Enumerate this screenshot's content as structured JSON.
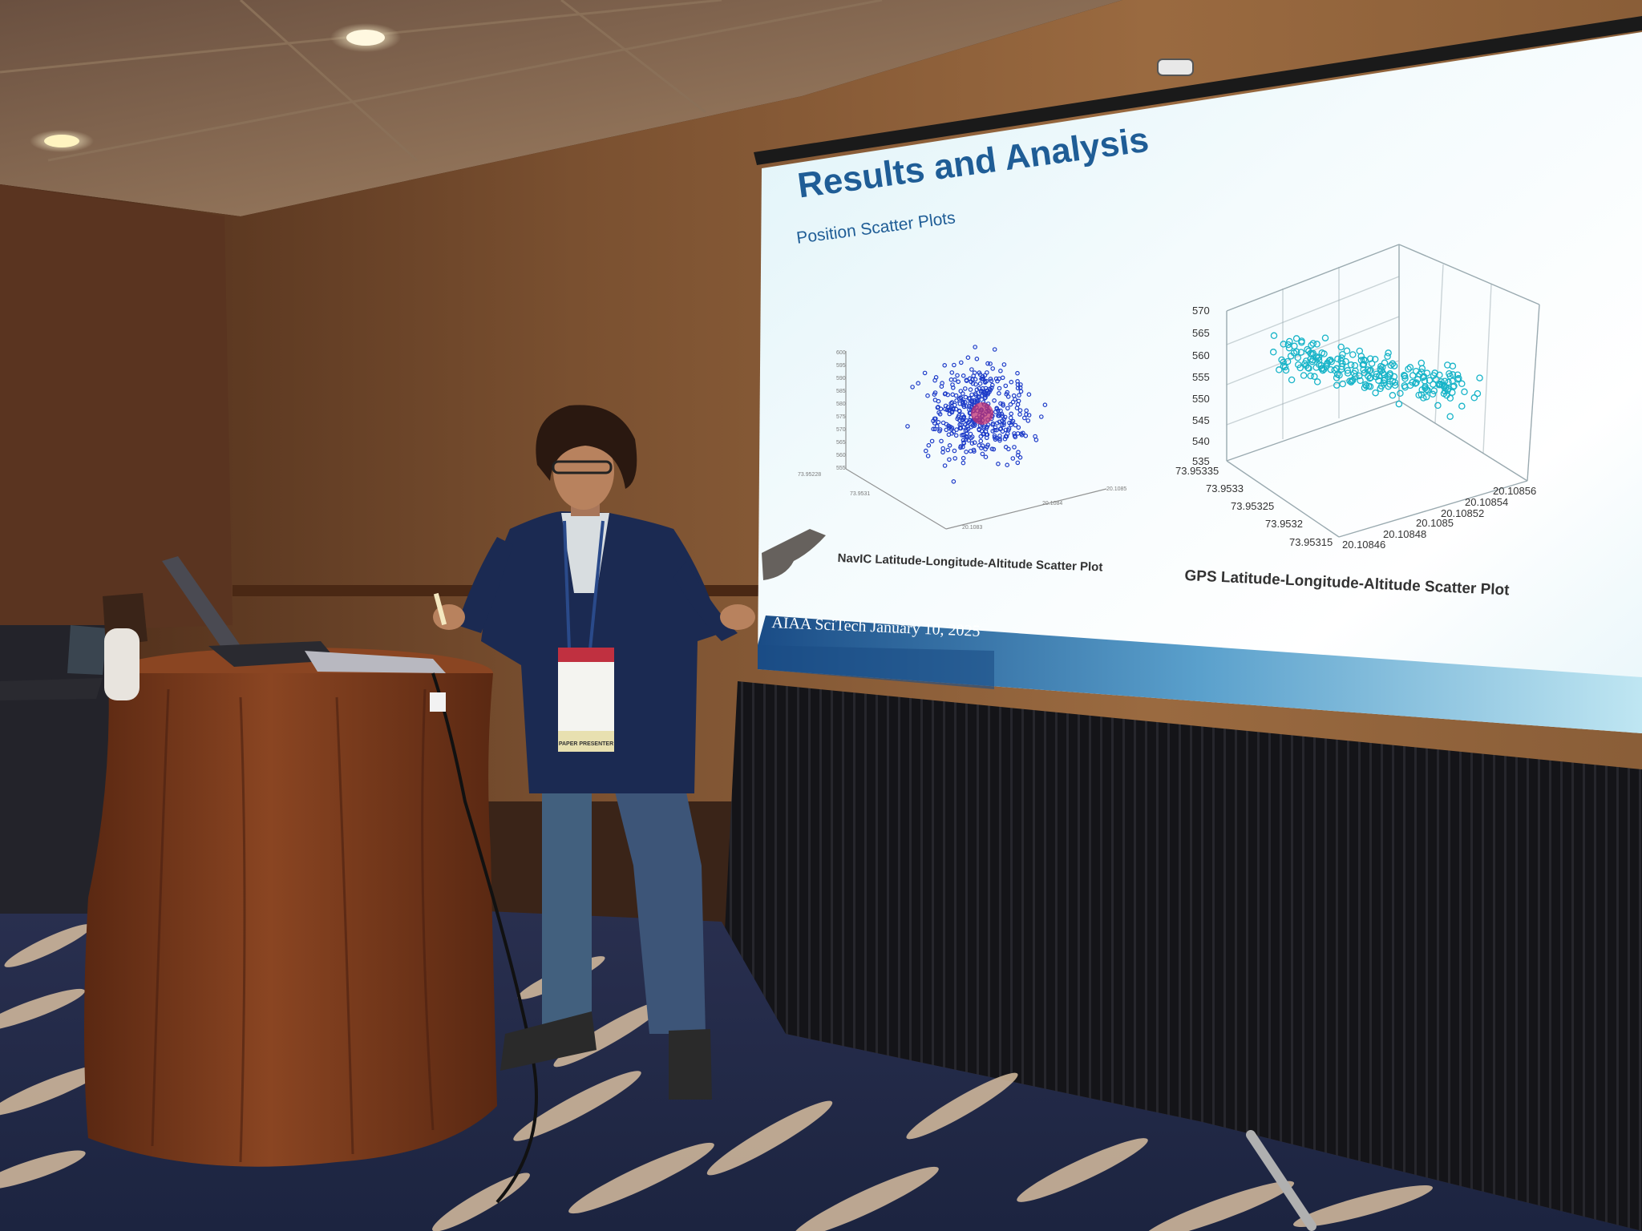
{
  "slide": {
    "title": "Results and Analysis",
    "subtitle": "Position Scatter Plots",
    "footer": "AIAA SciTech January 10, 2025",
    "left_plot_caption": "NavIC Latitude-Longitude-Altitude Scatter Plot",
    "right_plot_caption": "GPS Latitude-Longitude-Altitude Scatter Plot",
    "right_plot_z_ticks": [
      "570",
      "565",
      "560",
      "555",
      "550",
      "545",
      "540",
      "535"
    ],
    "right_plot_x_ticks": [
      "73.95335",
      "73.9533",
      "73.95325",
      "73.9532",
      "73.95315"
    ],
    "right_plot_y_ticks": [
      "20.10846",
      "20.10848",
      "20.1085",
      "20.10852",
      "20.10854",
      "20.10856"
    ]
  },
  "badge": {
    "role": "PAPER PRESENTER"
  },
  "colors": {
    "slide_title": "#1f5d96",
    "navic_points": "#1e3cc8",
    "gps_points": "#18b4c8",
    "tablecloth": "#7a3a1c",
    "blazer": "#1b2a52",
    "skirt": "#151518"
  }
}
